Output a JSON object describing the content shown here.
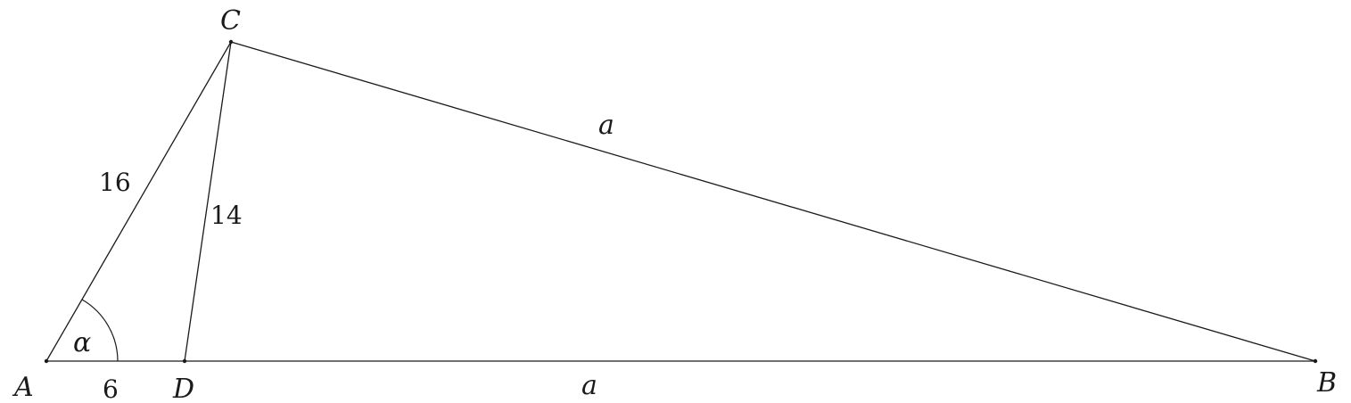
{
  "vertices": {
    "A": "A",
    "B": "B",
    "C": "C",
    "D": "D"
  },
  "sides": {
    "AC": "16",
    "CD": "14",
    "AD": "6",
    "CB": "a",
    "DB": "a"
  },
  "angle": {
    "A": "α"
  }
}
